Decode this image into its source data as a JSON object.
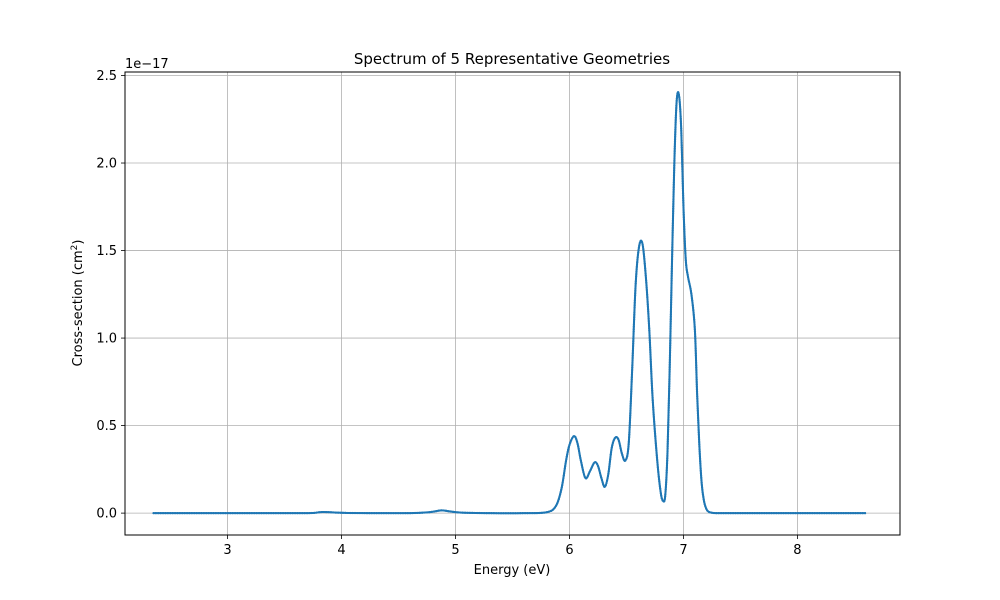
{
  "chart_data": {
    "type": "line",
    "title": "Spectrum of 5 Representative Geometries",
    "xlabel": "Energy (eV)",
    "ylabel_main": "Cross-section (cm",
    "ylabel_sup": "2",
    "ylabel_close": ")",
    "y_offset_label": "1e−17",
    "xlim": [
      2.1,
      8.9
    ],
    "ylim": [
      -0.125,
      2.52
    ],
    "x_ticks": [
      3,
      4,
      5,
      6,
      7,
      8
    ],
    "x_tick_labels": [
      "3",
      "4",
      "5",
      "6",
      "7",
      "8"
    ],
    "y_ticks": [
      0.0,
      0.5,
      1.0,
      1.5,
      2.0,
      2.5
    ],
    "y_tick_labels": [
      "0.0",
      "0.5",
      "1.0",
      "1.5",
      "2.0",
      "2.5"
    ],
    "grid": true,
    "line_color": "#1f77b4",
    "series": [
      {
        "x": [
          2.35,
          3.0,
          3.6,
          3.75,
          3.82,
          3.9,
          3.95,
          4.05,
          4.3,
          4.6,
          4.75,
          4.82,
          4.88,
          4.95,
          5.05,
          5.3,
          5.6,
          5.8,
          5.88,
          5.93,
          5.97,
          6.0,
          6.04,
          6.07,
          6.1,
          6.14,
          6.18,
          6.22,
          6.25,
          6.28,
          6.31,
          6.34,
          6.37,
          6.4,
          6.43,
          6.46,
          6.49,
          6.52,
          6.55,
          6.58,
          6.61,
          6.64,
          6.67,
          6.7,
          6.73,
          6.77,
          6.8,
          6.82,
          6.84,
          6.86,
          6.88,
          6.9,
          6.92,
          6.94,
          6.96,
          6.98,
          7.0,
          7.02,
          7.04,
          7.07,
          7.1,
          7.12,
          7.14,
          7.16,
          7.18,
          7.2,
          7.22,
          7.25,
          7.3,
          7.5,
          8.0,
          8.6
        ],
        "y": [
          0.0,
          0.0,
          0.0,
          0.001,
          0.006,
          0.005,
          0.003,
          0.001,
          0.0,
          0.0,
          0.004,
          0.01,
          0.016,
          0.01,
          0.003,
          0.0,
          0.0,
          0.005,
          0.04,
          0.14,
          0.3,
          0.39,
          0.44,
          0.4,
          0.3,
          0.2,
          0.24,
          0.29,
          0.27,
          0.2,
          0.15,
          0.22,
          0.37,
          0.43,
          0.42,
          0.34,
          0.3,
          0.4,
          0.82,
          1.3,
          1.52,
          1.54,
          1.35,
          1.05,
          0.65,
          0.3,
          0.12,
          0.07,
          0.1,
          0.35,
          0.85,
          1.45,
          2.0,
          2.35,
          2.39,
          2.2,
          1.75,
          1.45,
          1.35,
          1.25,
          1.05,
          0.68,
          0.38,
          0.17,
          0.07,
          0.025,
          0.008,
          0.002,
          0.0,
          0.0,
          0.0,
          0.0
        ]
      }
    ]
  }
}
